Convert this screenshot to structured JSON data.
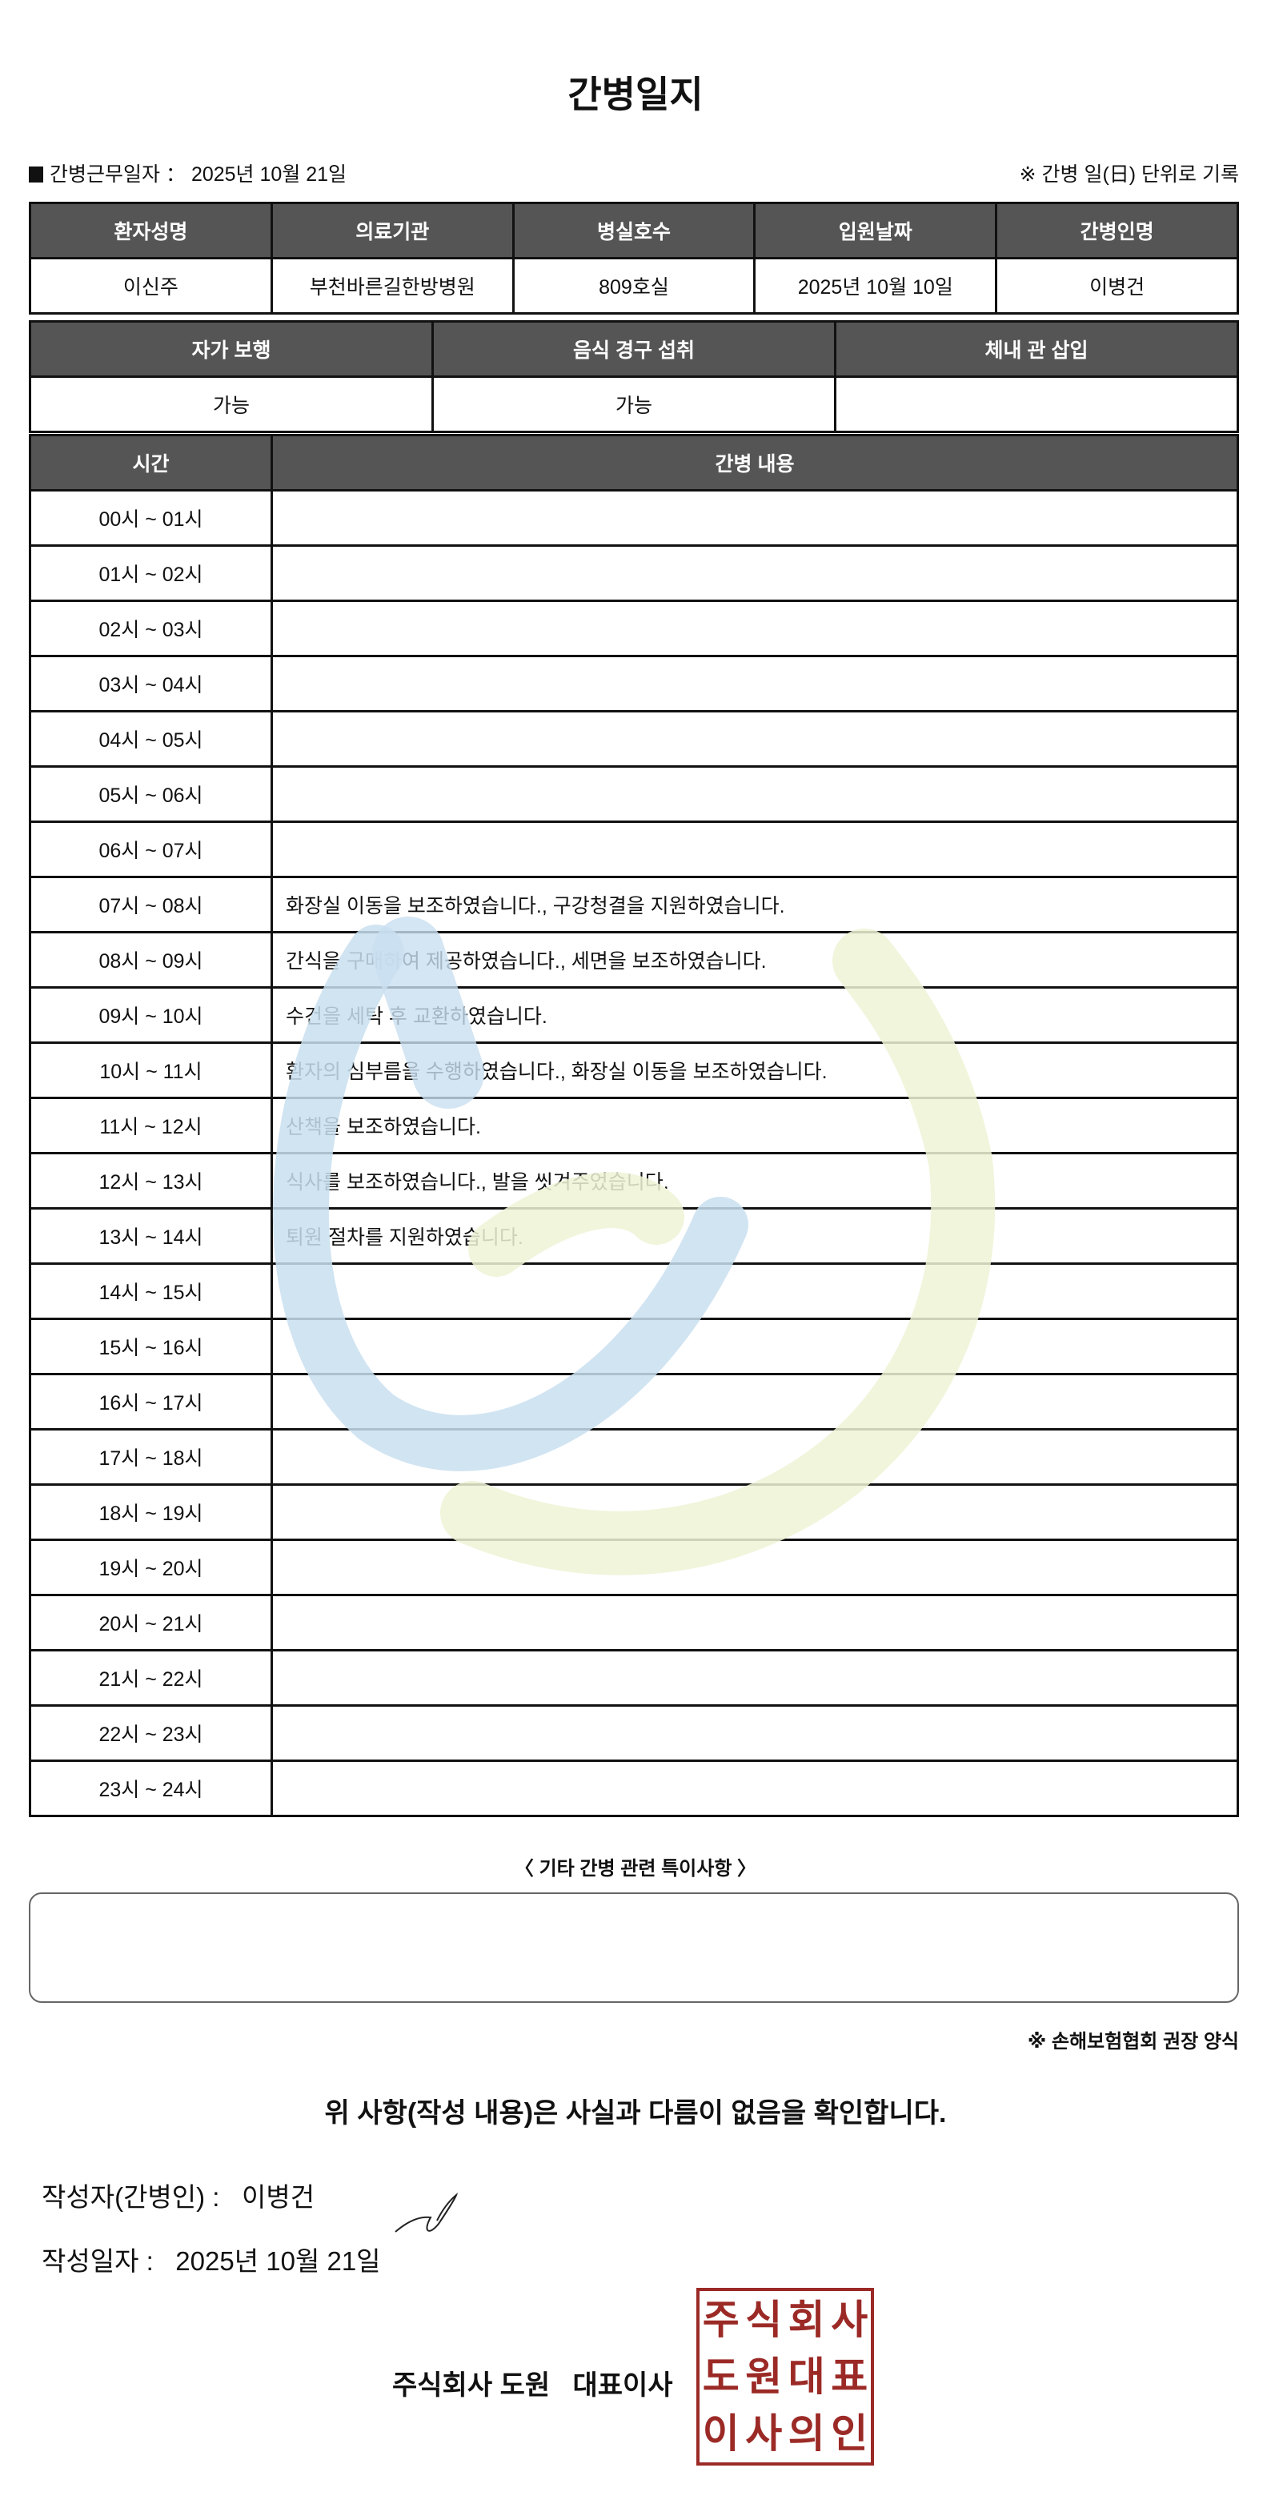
{
  "title": "간병일지",
  "info": {
    "work_date_label": "간병근무일자",
    "work_date_separator": "：",
    "work_date": "2025년 10월 21일",
    "note": "※ 간병 일(日) 단위로 기록"
  },
  "patient_table": {
    "headers": [
      "환자성명",
      "의료기관",
      "병실호수",
      "입원날짜",
      "간병인명"
    ],
    "values": [
      "이신주",
      "부천바른길한방병원",
      "809호실",
      "2025년 10월 10일",
      "이병건"
    ]
  },
  "status_table": {
    "headers": [
      "자가 보행",
      "음식 경구 섭취",
      "체내 관 삽입"
    ],
    "values": [
      "가능",
      "가능",
      ""
    ]
  },
  "log_table": {
    "headers": [
      "시간",
      "간병 내용"
    ],
    "rows": [
      {
        "time": "00시 ~ 01시",
        "content": ""
      },
      {
        "time": "01시 ~ 02시",
        "content": ""
      },
      {
        "time": "02시 ~ 03시",
        "content": ""
      },
      {
        "time": "03시 ~ 04시",
        "content": ""
      },
      {
        "time": "04시 ~ 05시",
        "content": ""
      },
      {
        "time": "05시 ~ 06시",
        "content": ""
      },
      {
        "time": "06시 ~ 07시",
        "content": ""
      },
      {
        "time": "07시 ~ 08시",
        "content": "화장실 이동을 보조하였습니다., 구강청결을 지원하였습니다."
      },
      {
        "time": "08시 ~ 09시",
        "content": "간식을 구매하여 제공하였습니다., 세면을 보조하였습니다."
      },
      {
        "time": "09시 ~ 10시",
        "content": "수건을 세탁 후 교환하였습니다."
      },
      {
        "time": "10시 ~ 11시",
        "content": "환자의 심부름을 수행하였습니다., 화장실 이동을 보조하였습니다."
      },
      {
        "time": "11시 ~ 12시",
        "content": "산책을 보조하였습니다."
      },
      {
        "time": "12시 ~ 13시",
        "content": "식사를 보조하였습니다., 발을 씻겨주었습니다."
      },
      {
        "time": "13시 ~ 14시",
        "content": "퇴원 절차를 지원하였습니다."
      },
      {
        "time": "14시 ~ 15시",
        "content": ""
      },
      {
        "time": "15시 ~ 16시",
        "content": ""
      },
      {
        "time": "16시 ~ 17시",
        "content": ""
      },
      {
        "time": "17시 ~ 18시",
        "content": ""
      },
      {
        "time": "18시 ~ 19시",
        "content": ""
      },
      {
        "time": "19시 ~ 20시",
        "content": ""
      },
      {
        "time": "20시 ~ 21시",
        "content": ""
      },
      {
        "time": "21시 ~ 22시",
        "content": ""
      },
      {
        "time": "22시 ~ 23시",
        "content": ""
      },
      {
        "time": "23시 ~ 24시",
        "content": ""
      }
    ]
  },
  "special_notes": {
    "title": "〈 기타 간병 관련 특이사항 〉",
    "content": ""
  },
  "form_note": "※ 손해보험협회 권장 양식",
  "confirmation": "위 사항(작성 내용)은 사실과 다름이 없음을 확인합니다.",
  "writer": {
    "label": "작성자(간병인) :",
    "name": "이병건"
  },
  "written_date": {
    "label": "작성일자 :",
    "value": "2025년 10월 21일"
  },
  "company": "주식회사 도원   대표이사",
  "stamp": {
    "text": [
      "주",
      "식",
      "회",
      "사",
      "도",
      "원",
      "대",
      "표",
      "이",
      "사",
      "의",
      "인"
    ],
    "color": "#9b2a26"
  },
  "colors": {
    "header_bg": "#555555",
    "watermark_blue": "#c9dff0",
    "watermark_green": "#eef3d6"
  }
}
